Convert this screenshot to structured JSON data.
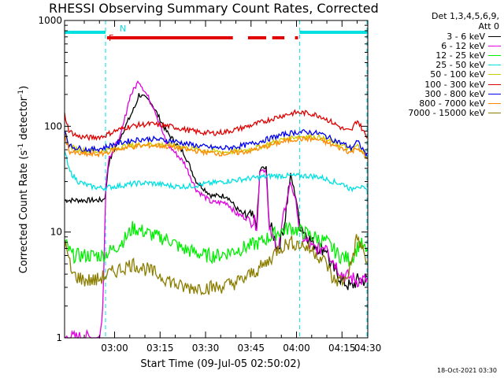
{
  "chart_data": {
    "type": "line",
    "title": "RHESSI Observing Summary Count Rates, Corrected",
    "xlabel": "Start Time (09-Jul-05 02:50:02)",
    "ylabel": "Corrected Count Rate (s",
    "ylabel_sup1": "-1",
    "ylabel_mid": " detector",
    "ylabel_sup2": "-1",
    "ylabel_end": ")",
    "yscale": "log",
    "ylim": [
      1,
      1000
    ],
    "xlim_minutes": [
      -6.5,
      93.5
    ],
    "y_ticks": [
      {
        "value": 1,
        "label": "1"
      },
      {
        "value": 10,
        "label": "10"
      },
      {
        "value": 100,
        "label": "100"
      },
      {
        "value": 1000,
        "label": "1000"
      }
    ],
    "x_ticks": [
      {
        "minutes": 10,
        "label": "03:00"
      },
      {
        "minutes": 25,
        "label": "03:15"
      },
      {
        "minutes": 40,
        "label": "03:30"
      },
      {
        "minutes": 55,
        "label": "03:45"
      },
      {
        "minutes": 70,
        "label": "04:00"
      },
      {
        "minutes": 85,
        "label": "04:15"
      },
      {
        "minutes": 100,
        "label": "04:30"
      }
    ],
    "legend_header": [
      "Det 1,3,4,5,6,9,",
      "Att 0"
    ],
    "series": [
      {
        "name": "3 - 6 keV",
        "color": "#000000",
        "points": [
          [
            -6.5,
            20
          ],
          [
            3,
            20
          ],
          [
            6,
            20
          ],
          [
            7,
            22
          ],
          [
            8,
            45
          ],
          [
            11,
            70
          ],
          [
            17,
            160
          ],
          [
            18,
            200
          ],
          [
            22,
            170
          ],
          [
            27,
            90
          ],
          [
            33,
            55
          ],
          [
            37,
            30
          ],
          [
            42,
            22
          ],
          [
            47,
            22
          ],
          [
            50,
            17
          ],
          [
            53,
            14
          ],
          [
            55,
            14
          ],
          [
            57,
            12
          ],
          [
            58,
            40
          ],
          [
            60,
            40
          ],
          [
            61,
            12
          ],
          [
            64,
            7
          ],
          [
            66,
            12
          ],
          [
            68,
            35
          ],
          [
            70,
            20
          ],
          [
            71,
            12
          ],
          [
            75,
            8
          ],
          [
            78,
            7
          ],
          [
            80,
            7
          ],
          [
            81,
            5
          ],
          [
            85,
            3.5
          ],
          [
            88,
            3
          ],
          [
            90,
            3.5
          ],
          [
            93.5,
            3.5
          ]
        ]
      },
      {
        "name": "6 - 12 keV",
        "color": "#e000e0",
        "points": [
          [
            -6.5,
            1
          ],
          [
            5,
            1
          ],
          [
            6,
            1.5
          ],
          [
            7,
            25
          ],
          [
            8,
            50
          ],
          [
            12,
            80
          ],
          [
            15,
            190
          ],
          [
            18,
            270
          ],
          [
            19,
            240
          ],
          [
            23,
            150
          ],
          [
            27,
            70
          ],
          [
            33,
            45
          ],
          [
            37,
            25
          ],
          [
            42,
            19
          ],
          [
            47,
            19
          ],
          [
            50,
            15
          ],
          [
            55,
            13
          ],
          [
            57,
            12
          ],
          [
            58,
            40
          ],
          [
            60,
            38
          ],
          [
            61,
            10
          ],
          [
            64,
            7
          ],
          [
            66,
            15
          ],
          [
            68,
            30
          ],
          [
            70,
            18
          ],
          [
            71,
            10
          ],
          [
            75,
            7
          ],
          [
            78,
            7
          ],
          [
            80,
            8
          ],
          [
            81,
            6
          ],
          [
            85,
            4
          ],
          [
            90,
            3.5
          ],
          [
            93.5,
            3.5
          ]
        ]
      },
      {
        "name": "12 - 25 keV",
        "color": "#00ee00",
        "points": [
          [
            -6.5,
            8
          ],
          [
            -4,
            6
          ],
          [
            0,
            6
          ],
          [
            6,
            6
          ],
          [
            10,
            7
          ],
          [
            14,
            9
          ],
          [
            16,
            11
          ],
          [
            20,
            10
          ],
          [
            24,
            9
          ],
          [
            28,
            8.5
          ],
          [
            32,
            7
          ],
          [
            36,
            6.5
          ],
          [
            40,
            6
          ],
          [
            44,
            6
          ],
          [
            48,
            6.5
          ],
          [
            52,
            7
          ],
          [
            58,
            8
          ],
          [
            64,
            10
          ],
          [
            68,
            11
          ],
          [
            72,
            10
          ],
          [
            76,
            9
          ],
          [
            80,
            8
          ],
          [
            84,
            6
          ],
          [
            88,
            5.5
          ],
          [
            91,
            8
          ],
          [
            93.5,
            6
          ]
        ]
      },
      {
        "name": "25 - 50 keV",
        "color": "#00e0e0",
        "points": [
          [
            -6.5,
            60
          ],
          [
            -5,
            38
          ],
          [
            -2,
            30
          ],
          [
            2,
            27
          ],
          [
            6,
            26
          ],
          [
            10,
            27
          ],
          [
            14,
            28
          ],
          [
            18,
            29
          ],
          [
            22,
            29
          ],
          [
            26,
            28
          ],
          [
            30,
            27
          ],
          [
            34,
            27
          ],
          [
            38,
            28
          ],
          [
            42,
            29
          ],
          [
            46,
            30
          ],
          [
            50,
            31
          ],
          [
            54,
            32
          ],
          [
            58,
            33
          ],
          [
            62,
            34
          ],
          [
            66,
            34
          ],
          [
            70,
            34
          ],
          [
            74,
            34
          ],
          [
            78,
            33
          ],
          [
            82,
            30
          ],
          [
            86,
            28
          ],
          [
            88,
            25
          ],
          [
            90,
            28
          ],
          [
            93.5,
            24
          ]
        ]
      },
      {
        "name": "50 - 100 keV",
        "color": "#cccc00",
        "points": [
          [
            -6.5,
            95
          ],
          [
            -5,
            65
          ],
          [
            -2,
            60
          ],
          [
            2,
            58
          ],
          [
            6,
            58
          ],
          [
            10,
            62
          ],
          [
            14,
            65
          ],
          [
            18,
            67
          ],
          [
            22,
            68
          ],
          [
            26,
            67
          ],
          [
            30,
            66
          ],
          [
            34,
            62
          ],
          [
            38,
            60
          ],
          [
            42,
            58
          ],
          [
            46,
            57
          ],
          [
            50,
            58
          ],
          [
            54,
            60
          ],
          [
            58,
            64
          ],
          [
            62,
            70
          ],
          [
            66,
            76
          ],
          [
            70,
            80
          ],
          [
            74,
            80
          ],
          [
            78,
            78
          ],
          [
            82,
            70
          ],
          [
            86,
            64
          ],
          [
            88,
            58
          ],
          [
            90,
            66
          ],
          [
            93.5,
            52
          ]
        ]
      },
      {
        "name": "100 - 300 keV",
        "color": "#e00000",
        "points": [
          [
            -6.5,
            130
          ],
          [
            -5,
            90
          ],
          [
            -2,
            80
          ],
          [
            2,
            78
          ],
          [
            6,
            80
          ],
          [
            10,
            90
          ],
          [
            14,
            98
          ],
          [
            18,
            103
          ],
          [
            22,
            105
          ],
          [
            26,
            102
          ],
          [
            30,
            98
          ],
          [
            34,
            92
          ],
          [
            38,
            88
          ],
          [
            42,
            86
          ],
          [
            46,
            88
          ],
          [
            50,
            93
          ],
          [
            54,
            100
          ],
          [
            58,
            108
          ],
          [
            62,
            118
          ],
          [
            66,
            128
          ],
          [
            70,
            135
          ],
          [
            74,
            133
          ],
          [
            78,
            125
          ],
          [
            82,
            108
          ],
          [
            86,
            92
          ],
          [
            88,
            90
          ],
          [
            90,
            115
          ],
          [
            93.5,
            75
          ]
        ]
      },
      {
        "name": "300 - 800 keV",
        "color": "#0000ee",
        "points": [
          [
            -6.5,
            95
          ],
          [
            -5,
            65
          ],
          [
            -2,
            62
          ],
          [
            2,
            60
          ],
          [
            6,
            62
          ],
          [
            10,
            68
          ],
          [
            14,
            72
          ],
          [
            18,
            75
          ],
          [
            22,
            76
          ],
          [
            26,
            74
          ],
          [
            30,
            72
          ],
          [
            34,
            68
          ],
          [
            38,
            65
          ],
          [
            42,
            63
          ],
          [
            46,
            62
          ],
          [
            50,
            64
          ],
          [
            54,
            67
          ],
          [
            58,
            72
          ],
          [
            62,
            78
          ],
          [
            66,
            84
          ],
          [
            70,
            88
          ],
          [
            74,
            88
          ],
          [
            78,
            85
          ],
          [
            82,
            75
          ],
          [
            86,
            67
          ],
          [
            88,
            62
          ],
          [
            90,
            72
          ],
          [
            93.5,
            52
          ]
        ]
      },
      {
        "name": "800 - 7000 keV",
        "color": "#ff8800",
        "points": [
          [
            -6.5,
            85
          ],
          [
            -5,
            58
          ],
          [
            -2,
            55
          ],
          [
            2,
            54
          ],
          [
            6,
            55
          ],
          [
            10,
            60
          ],
          [
            14,
            63
          ],
          [
            18,
            65
          ],
          [
            22,
            66
          ],
          [
            26,
            65
          ],
          [
            30,
            63
          ],
          [
            34,
            60
          ],
          [
            38,
            58
          ],
          [
            42,
            56
          ],
          [
            46,
            55
          ],
          [
            50,
            56
          ],
          [
            54,
            58
          ],
          [
            58,
            62
          ],
          [
            62,
            67
          ],
          [
            66,
            72
          ],
          [
            70,
            76
          ],
          [
            74,
            76
          ],
          [
            78,
            74
          ],
          [
            82,
            66
          ],
          [
            86,
            60
          ],
          [
            88,
            56
          ],
          [
            90,
            64
          ],
          [
            93.5,
            48
          ]
        ]
      },
      {
        "name": "7000 - 15000 keV",
        "color": "#8b7d00",
        "points": [
          [
            -6.5,
            8
          ],
          [
            -4,
            4
          ],
          [
            0,
            3.5
          ],
          [
            4,
            3.5
          ],
          [
            8,
            4
          ],
          [
            12,
            4.5
          ],
          [
            16,
            5
          ],
          [
            20,
            4.5
          ],
          [
            24,
            4
          ],
          [
            28,
            3.5
          ],
          [
            32,
            3
          ],
          [
            36,
            3
          ],
          [
            40,
            3
          ],
          [
            44,
            3
          ],
          [
            48,
            3.2
          ],
          [
            52,
            3.5
          ],
          [
            56,
            4.2
          ],
          [
            60,
            5
          ],
          [
            64,
            7
          ],
          [
            68,
            8
          ],
          [
            72,
            7.5
          ],
          [
            76,
            6.5
          ],
          [
            80,
            5
          ],
          [
            82,
            3.5
          ],
          [
            86,
            3.5
          ],
          [
            88,
            5
          ],
          [
            90,
            9
          ],
          [
            93.5,
            5
          ]
        ]
      }
    ],
    "annotations": [
      {
        "label": "F",
        "color": "#e00000"
      },
      {
        "label": "N",
        "color": "#00e0e0"
      }
    ],
    "flare_flags_minutes": [
      [
        7.5,
        49
      ],
      [
        54,
        60
      ],
      [
        62,
        66
      ],
      [
        69.5,
        70.5
      ]
    ],
    "night_flags_minutes": [
      [
        -6.5,
        7
      ],
      [
        71,
        93.5
      ]
    ],
    "vertical_dashed_minutes": [
      7,
      71,
      93.5
    ],
    "grid": false
  },
  "footer": {
    "date_stamp": "18-Oct-2021 03:30"
  }
}
